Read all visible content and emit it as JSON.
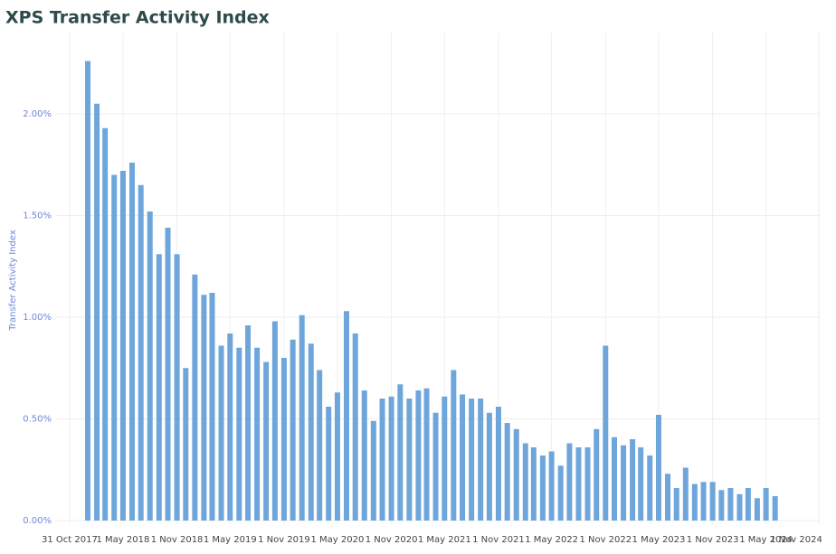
{
  "chart_data": {
    "type": "bar",
    "title": "XPS Transfer Activity Index",
    "y_label": "Transfer Activity Index",
    "color": "#6ea6dc",
    "grid": true,
    "x": [
      "2018-01-01",
      "2018-02-01",
      "2018-03-01",
      "2018-04-01",
      "2018-05-01",
      "2018-06-01",
      "2018-07-01",
      "2018-08-01",
      "2018-09-01",
      "2018-10-01",
      "2018-11-01",
      "2018-12-01",
      "2019-01-01",
      "2019-02-01",
      "2019-03-01",
      "2019-04-01",
      "2019-05-01",
      "2019-06-01",
      "2019-07-01",
      "2019-08-01",
      "2019-09-01",
      "2019-10-01",
      "2019-11-01",
      "2019-12-01",
      "2020-01-01",
      "2020-02-01",
      "2020-03-01",
      "2020-04-01",
      "2020-05-01",
      "2020-06-01",
      "2020-07-01",
      "2020-08-01",
      "2020-09-01",
      "2020-10-01",
      "2020-11-01",
      "2020-12-01",
      "2021-01-01",
      "2021-02-01",
      "2021-03-01",
      "2021-04-01",
      "2021-05-01",
      "2021-06-01",
      "2021-07-01",
      "2021-08-01",
      "2021-09-01",
      "2021-10-01",
      "2021-11-01",
      "2021-12-01",
      "2022-01-01",
      "2022-02-01",
      "2022-03-01",
      "2022-04-01",
      "2022-05-01",
      "2022-06-01",
      "2022-07-01",
      "2022-08-01",
      "2022-09-01",
      "2022-10-01",
      "2022-11-01",
      "2022-12-01",
      "2023-01-01",
      "2023-02-01",
      "2023-03-01",
      "2023-04-01",
      "2023-05-01",
      "2023-06-01",
      "2023-07-01",
      "2023-08-01",
      "2023-09-01",
      "2023-10-01",
      "2023-11-01",
      "2023-12-01",
      "2024-01-01",
      "2024-02-01",
      "2024-03-01",
      "2024-04-01",
      "2024-05-01",
      "2024-06-01"
    ],
    "values": [
      2.26,
      2.05,
      1.93,
      1.7,
      1.72,
      1.76,
      1.65,
      1.52,
      1.31,
      1.44,
      1.31,
      0.75,
      1.21,
      1.11,
      1.12,
      0.86,
      0.92,
      0.85,
      0.96,
      0.85,
      0.78,
      0.98,
      0.8,
      0.89,
      1.01,
      0.87,
      0.74,
      0.56,
      0.63,
      1.03,
      0.92,
      0.64,
      0.49,
      0.6,
      0.61,
      0.67,
      0.6,
      0.64,
      0.65,
      0.53,
      0.61,
      0.74,
      0.62,
      0.6,
      0.6,
      0.53,
      0.56,
      0.48,
      0.45,
      0.38,
      0.36,
      0.32,
      0.34,
      0.27,
      0.38,
      0.36,
      0.36,
      0.45,
      0.86,
      0.41,
      0.37,
      0.4,
      0.36,
      0.32,
      0.52,
      0.23,
      0.16,
      0.26,
      0.18,
      0.19,
      0.19,
      0.15,
      0.16,
      0.13,
      0.16,
      0.11,
      0.16,
      0.12
    ],
    "xlim": [
      "2017-09-15",
      "2024-10-28"
    ],
    "xticks": [
      {
        "value": "2017-10-31",
        "label": "31 Oct 2017"
      },
      {
        "value": "2018-05-01",
        "label": "1 May 2018"
      },
      {
        "value": "2018-11-01",
        "label": "1 Nov 2018"
      },
      {
        "value": "2019-05-01",
        "label": "1 May 2019"
      },
      {
        "value": "2019-11-01",
        "label": "1 Nov 2019"
      },
      {
        "value": "2020-05-01",
        "label": "1 May 2020"
      },
      {
        "value": "2020-11-01",
        "label": "1 Nov 2020"
      },
      {
        "value": "2021-05-01",
        "label": "1 May 2021"
      },
      {
        "value": "2021-11-01",
        "label": "1 Nov 2021"
      },
      {
        "value": "2022-05-01",
        "label": "1 May 2022"
      },
      {
        "value": "2022-11-01",
        "label": "1 Nov 2022"
      },
      {
        "value": "2023-05-01",
        "label": "1 May 2023"
      },
      {
        "value": "2023-11-01",
        "label": "1 Nov 2023"
      },
      {
        "value": "2024-05-01",
        "label": "1 May 2024"
      },
      {
        "value": "2024-11-01",
        "label": "1 Nov 2024"
      }
    ],
    "ylim": [
      0,
      2.4
    ],
    "yticks": [
      {
        "value": 0,
        "label": "0.00%"
      },
      {
        "value": 0.5,
        "label": "0.50%"
      },
      {
        "value": 1,
        "label": "1.00%"
      },
      {
        "value": 1.5,
        "label": "1.50%"
      },
      {
        "value": 2,
        "label": "2.00%"
      }
    ]
  }
}
